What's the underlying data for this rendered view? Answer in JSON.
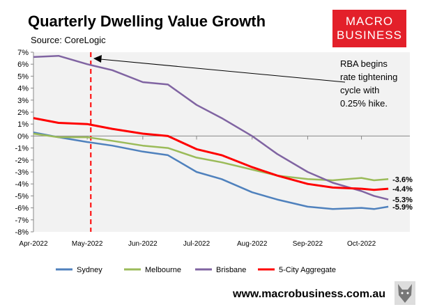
{
  "title": "Quarterly Dwelling Value Growth",
  "source": "Source: CoreLogic",
  "logo": {
    "line1": "MACRO",
    "line2": "BUSINESS",
    "color": "#e3202a"
  },
  "url": "www.macrobusiness.com.au",
  "chart_data": {
    "type": "line",
    "title": "Quarterly Dwelling Value Growth",
    "xlabel": "",
    "ylabel": "",
    "ylim": [
      -8,
      7
    ],
    "xlim": [
      "2022-04-01",
      "2022-10-28"
    ],
    "yticks": [
      "7%",
      "6%",
      "5%",
      "4%",
      "3%",
      "2%",
      "1%",
      "0%",
      "-1%",
      "-2%",
      "-3%",
      "-4%",
      "-5%",
      "-6%",
      "-7%",
      "-8%"
    ],
    "xticks": [
      {
        "date": "2022-04-01",
        "label": "Apr-2022"
      },
      {
        "date": "2022-05-01",
        "label": "May-2022"
      },
      {
        "date": "2022-06-01",
        "label": "Jun-2022"
      },
      {
        "date": "2022-07-01",
        "label": "Jul-2022"
      },
      {
        "date": "2022-08-01",
        "label": "Aug-2022"
      },
      {
        "date": "2022-09-01",
        "label": "Sep-2022"
      },
      {
        "date": "2022-10-01",
        "label": "Oct-2022"
      }
    ],
    "grid": false,
    "legend_position": "bottom",
    "x": [
      "2022-04-01",
      "2022-04-15",
      "2022-05-01",
      "2022-05-15",
      "2022-06-01",
      "2022-06-15",
      "2022-07-01",
      "2022-07-15",
      "2022-08-01",
      "2022-08-15",
      "2022-09-01",
      "2022-09-15",
      "2022-10-01",
      "2022-10-08",
      "2022-10-16"
    ],
    "series": [
      {
        "name": "Sydney",
        "color": "#4f81bd",
        "values": [
          0.3,
          -0.1,
          -0.5,
          -0.8,
          -1.3,
          -1.6,
          -3.0,
          -3.6,
          -4.7,
          -5.3,
          -5.9,
          -6.1,
          -6.0,
          -6.1,
          -5.9
        ],
        "end_label": "-5.9%"
      },
      {
        "name": "Melbourne",
        "color": "#9bbb59",
        "values": [
          0.2,
          -0.1,
          -0.1,
          -0.4,
          -0.8,
          -1.0,
          -1.8,
          -2.2,
          -2.8,
          -3.3,
          -3.6,
          -3.7,
          -3.5,
          -3.7,
          -3.6
        ],
        "end_label": "-3.6%"
      },
      {
        "name": "Brisbane",
        "color": "#8064a2",
        "values": [
          6.6,
          6.7,
          6.0,
          5.5,
          4.5,
          4.3,
          2.6,
          1.5,
          0.0,
          -1.5,
          -3.0,
          -3.9,
          -4.6,
          -5.0,
          -5.3
        ],
        "end_label": "-5.3%"
      },
      {
        "name": "5-City Aggregate",
        "color": "#ff0000",
        "values": [
          1.5,
          1.1,
          1.0,
          0.6,
          0.2,
          0.0,
          -1.1,
          -1.6,
          -2.6,
          -3.3,
          -4.0,
          -4.3,
          -4.4,
          -4.5,
          -4.4
        ],
        "end_label": "-4.4%"
      }
    ],
    "annotation": {
      "lines": [
        "RBA begins",
        "rate tightening",
        "cycle with",
        "0.25% hike."
      ],
      "date": "2022-05-03"
    }
  }
}
